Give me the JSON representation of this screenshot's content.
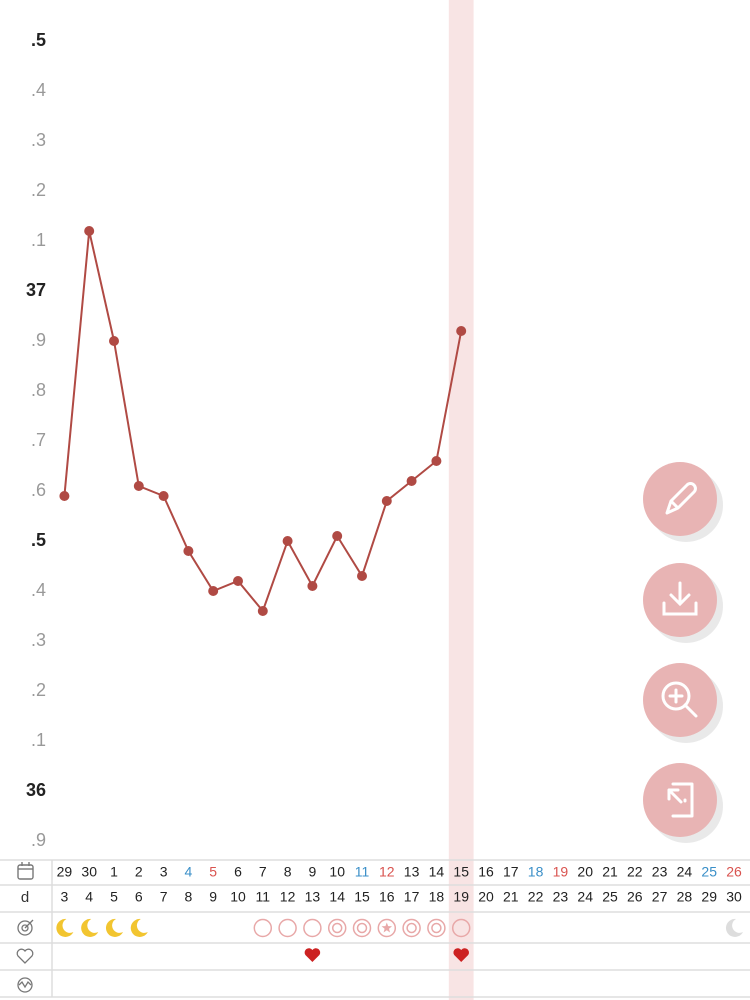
{
  "chart_data": {
    "type": "line",
    "categories": [
      "29",
      "30",
      "1",
      "2",
      "3",
      "4",
      "5",
      "6",
      "7",
      "8",
      "9",
      "10",
      "11",
      "12",
      "13",
      "14",
      "15",
      "16",
      "17",
      "18",
      "19",
      "20",
      "21",
      "22",
      "23",
      "24",
      "25",
      "26"
    ],
    "category_colors": [
      "#222",
      "#222",
      "#222",
      "#222",
      "#222",
      "#3a8fc8",
      "#d9534f",
      "#222",
      "#222",
      "#222",
      "#222",
      "#222",
      "#3a8fc8",
      "#d9534f",
      "#222",
      "#222",
      "#222",
      "#222",
      "#222",
      "#3a8fc8",
      "#d9534f",
      "#222",
      "#222",
      "#222",
      "#222",
      "#222",
      "#3a8fc8",
      "#d9534f"
    ],
    "cycle_day_label": "d",
    "cycle_days": [
      "3",
      "4",
      "5",
      "6",
      "7",
      "8",
      "9",
      "10",
      "11",
      "12",
      "13",
      "14",
      "15",
      "16",
      "17",
      "18",
      "19",
      "20",
      "21",
      "22",
      "23",
      "24",
      "25",
      "26",
      "27",
      "28",
      "29",
      "30"
    ],
    "values": [
      36.59,
      37.12,
      36.9,
      36.61,
      36.59,
      36.48,
      36.4,
      36.42,
      36.36,
      36.5,
      36.41,
      36.51,
      36.43,
      36.58,
      36.62,
      36.66,
      36.92,
      null,
      null,
      null,
      null,
      null,
      null,
      null,
      null,
      null,
      null,
      null
    ],
    "color": "#b04a44",
    "markers": [
      "moon",
      "moon",
      "moon",
      "moon",
      null,
      null,
      null,
      null,
      "circle",
      "circle",
      "circle",
      "ring",
      "ring",
      "star",
      "ring",
      "ring",
      "circle",
      null,
      null,
      null,
      null,
      null,
      null,
      null,
      null,
      null,
      null,
      "moon-grey"
    ],
    "hearts": [
      null,
      null,
      null,
      null,
      null,
      null,
      null,
      null,
      null,
      null,
      "heart",
      null,
      null,
      null,
      null,
      null,
      "heart",
      null,
      null,
      null,
      null,
      null,
      null,
      null,
      null,
      null,
      null,
      null
    ],
    "highlight_index": 16,
    "ylim": [
      35.866,
      37.582
    ],
    "yticks": [
      {
        "value": 37.5,
        "label": ".5"
      },
      {
        "value": 37.4,
        "label": ".4"
      },
      {
        "value": 37.3,
        "label": ".3"
      },
      {
        "value": 37.2,
        "label": ".2"
      },
      {
        "value": 37.1,
        "label": ".1"
      },
      37,
      {
        "value": 36.9,
        "label": ".9"
      },
      {
        "value": 36.8,
        "label": ".8"
      },
      {
        "value": 36.7,
        "label": ".7"
      },
      {
        "value": 36.6,
        "label": ".6"
      },
      {
        "value": 36.5,
        "label": ".5"
      },
      {
        "value": 36.4,
        "label": ".4"
      },
      {
        "value": 36.3,
        "label": ".3"
      },
      {
        "value": 36.2,
        "label": ".2"
      },
      {
        "value": 36.1,
        "label": ".1"
      },
      36,
      {
        "value": 35.9,
        "label": ".9"
      }
    ],
    "major_ticks": [
      37.5,
      37,
      36.5,
      36
    ],
    "grid": true
  }
}
